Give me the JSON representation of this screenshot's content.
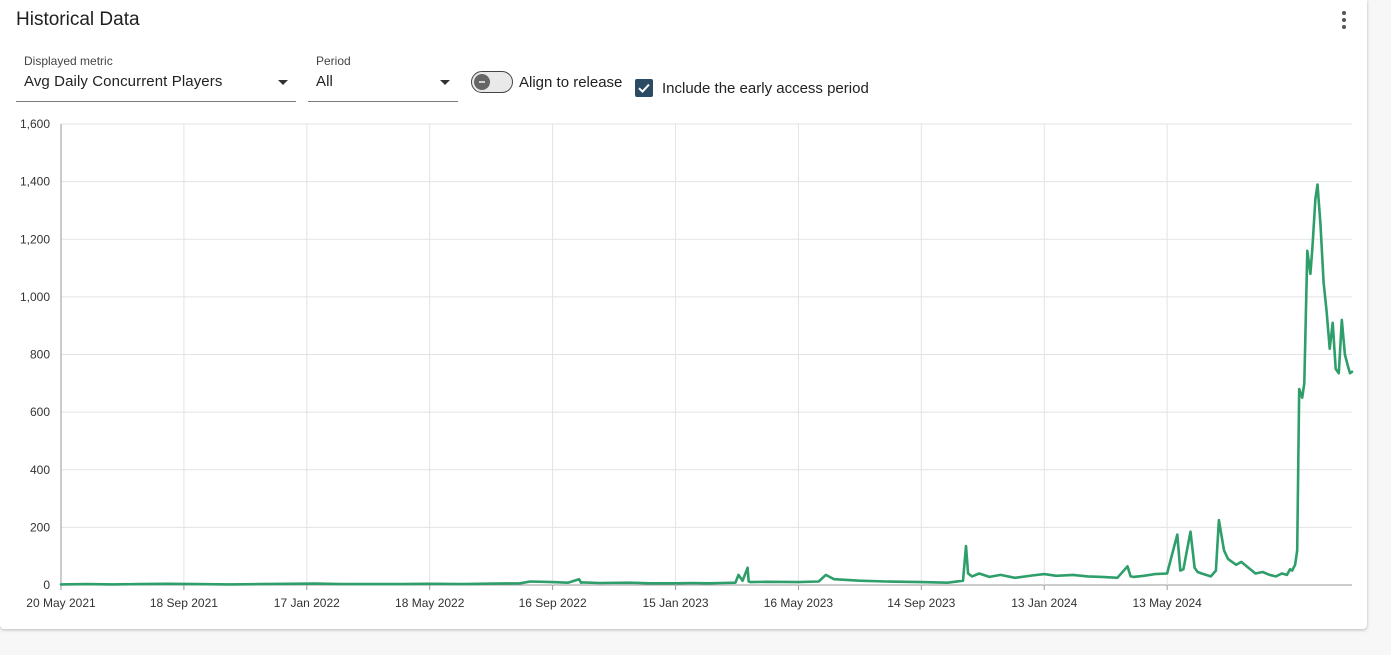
{
  "card": {
    "title": "Historical Data",
    "menu_icon": "more-vert-icon"
  },
  "controls": {
    "metric": {
      "label": "Displayed metric",
      "value": "Avg Daily Concurrent Players"
    },
    "period": {
      "label": "Period",
      "value": "All"
    },
    "align_toggle": {
      "label": "Align to release",
      "checked": false
    },
    "early_access": {
      "label": "Include the early access period",
      "checked": true
    }
  },
  "colors": {
    "line": "#2e9e6a",
    "checkbox": "#2b4a63",
    "grid": "#e3e3e3"
  },
  "chart_data": {
    "type": "line",
    "title": "",
    "xlabel": "",
    "ylabel": "",
    "ylim": [
      0,
      1600
    ],
    "yticks": [
      0,
      200,
      400,
      600,
      800,
      1000,
      1200,
      1400,
      1600
    ],
    "ytick_labels": [
      "0",
      "200",
      "400",
      "600",
      "800",
      "1,000",
      "1,200",
      "1,400",
      "1,600"
    ],
    "xlim": [
      "2021-05-20",
      "2024-11-11"
    ],
    "xticks": [
      "2021-05-20",
      "2021-09-18",
      "2022-01-17",
      "2022-05-18",
      "2022-09-16",
      "2023-01-15",
      "2023-05-16",
      "2023-09-14",
      "2024-01-13",
      "2024-05-13"
    ],
    "xtick_labels": [
      "20 May 2021",
      "18 Sep 2021",
      "17 Jan 2022",
      "18 May 2022",
      "16 Sep 2022",
      "15 Jan 2023",
      "16 May 2023",
      "14 Sep 2023",
      "13 Jan 2024",
      "13 May 2024"
    ],
    "grid": true,
    "legend": "none",
    "series": [
      {
        "x": [
          "2021-05-20",
          "2021-06-15",
          "2021-07-10",
          "2021-08-05",
          "2021-09-01",
          "2021-10-01",
          "2021-11-01",
          "2021-12-01",
          "2022-01-01",
          "2022-01-25",
          "2022-02-20",
          "2022-03-20",
          "2022-04-20",
          "2022-05-18",
          "2022-06-20",
          "2022-07-20",
          "2022-08-15",
          "2022-08-25",
          "2022-09-16",
          "2022-10-01",
          "2022-10-12",
          "2022-10-14",
          "2022-10-16",
          "2022-11-01",
          "2022-12-01",
          "2022-12-20",
          "2023-01-15",
          "2023-02-01",
          "2023-02-15",
          "2023-03-01",
          "2023-03-15",
          "2023-03-18",
          "2023-03-22",
          "2023-03-27",
          "2023-03-28",
          "2023-03-30",
          "2023-04-15",
          "2023-05-16",
          "2023-06-05",
          "2023-06-12",
          "2023-06-20",
          "2023-07-15",
          "2023-08-10",
          "2023-09-14",
          "2023-10-10",
          "2023-10-25",
          "2023-10-28",
          "2023-10-30",
          "2023-11-03",
          "2023-11-10",
          "2023-11-20",
          "2023-12-01",
          "2023-12-15",
          "2024-01-01",
          "2024-01-13",
          "2024-01-25",
          "2024-02-10",
          "2024-02-25",
          "2024-03-10",
          "2024-03-25",
          "2024-04-04",
          "2024-04-07",
          "2024-04-10",
          "2024-04-20",
          "2024-05-01",
          "2024-05-13",
          "2024-05-23",
          "2024-05-26",
          "2024-05-29",
          "2024-06-05",
          "2024-06-09",
          "2024-06-12",
          "2024-06-16",
          "2024-06-25",
          "2024-06-30",
          "2024-07-03",
          "2024-07-08",
          "2024-07-12",
          "2024-07-20",
          "2024-07-25",
          "2024-08-01",
          "2024-08-08",
          "2024-08-15",
          "2024-08-22",
          "2024-08-28",
          "2024-09-03",
          "2024-09-08",
          "2024-09-11",
          "2024-09-13",
          "2024-09-16",
          "2024-09-18",
          "2024-09-20",
          "2024-09-23",
          "2024-09-25",
          "2024-09-28",
          "2024-10-01",
          "2024-10-03",
          "2024-10-06",
          "2024-10-08",
          "2024-10-11",
          "2024-10-14",
          "2024-10-17",
          "2024-10-20",
          "2024-10-23",
          "2024-10-26",
          "2024-10-29",
          "2024-11-01",
          "2024-11-04",
          "2024-11-07",
          "2024-11-09",
          "2024-11-11"
        ],
        "y": [
          2,
          3,
          2,
          3,
          4,
          3,
          2,
          3,
          4,
          5,
          3,
          3,
          3,
          4,
          3,
          5,
          6,
          12,
          10,
          8,
          20,
          8,
          9,
          7,
          8,
          6,
          6,
          7,
          6,
          7,
          8,
          35,
          15,
          60,
          12,
          10,
          11,
          10,
          12,
          35,
          20,
          15,
          12,
          10,
          8,
          15,
          135,
          40,
          30,
          40,
          28,
          35,
          25,
          33,
          38,
          32,
          35,
          30,
          28,
          25,
          65,
          30,
          28,
          32,
          38,
          40,
          175,
          50,
          55,
          185,
          60,
          45,
          40,
          30,
          50,
          225,
          120,
          90,
          70,
          80,
          60,
          40,
          45,
          35,
          30,
          40,
          35,
          55,
          50,
          70,
          120,
          680,
          650,
          700,
          1160,
          1080,
          1170,
          1340,
          1390,
          1250,
          1050,
          950,
          820,
          910,
          750,
          735,
          920,
          800,
          760,
          735,
          740
        ]
      }
    ]
  }
}
